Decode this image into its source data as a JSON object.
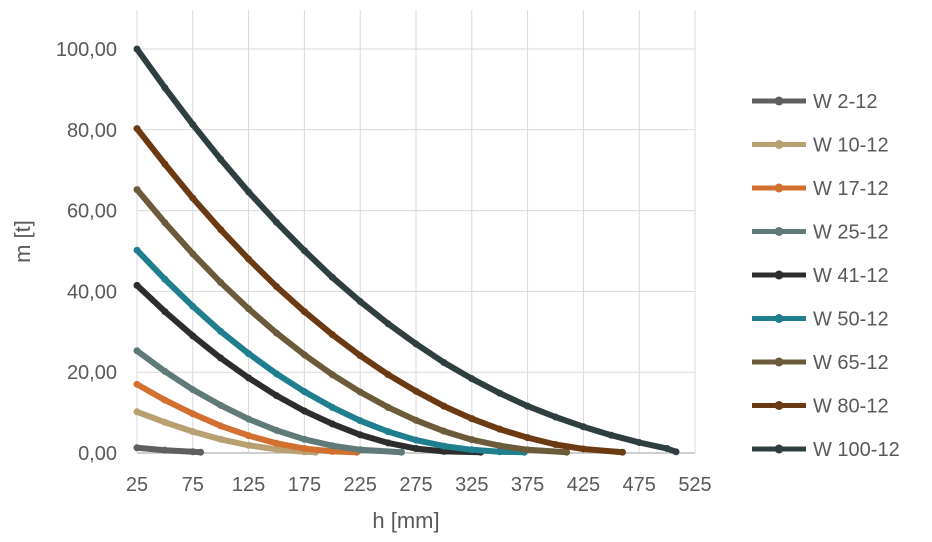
{
  "chart_data": {
    "type": "line",
    "xlabel": "h [mm]",
    "ylabel": "m [t]",
    "x_ticks": [
      "25",
      "75",
      "125",
      "175",
      "225",
      "275",
      "325",
      "375",
      "425",
      "475",
      "525"
    ],
    "y_ticks": [
      "0,00",
      "20,00",
      "40,00",
      "60,00",
      "80,00",
      "100,00"
    ],
    "xlim": [
      25,
      525
    ],
    "ylim": [
      0,
      110
    ],
    "grid": true,
    "legend_position": "right",
    "series": [
      {
        "name": "W 2-12",
        "color": "#5f5f5f",
        "points": [
          [
            25,
            1.3
          ],
          [
            50,
            0.7
          ],
          [
            75,
            0.3
          ],
          [
            82,
            0.2
          ]
        ]
      },
      {
        "name": "W 10-12",
        "color": "#b7a173",
        "points": [
          [
            25,
            10.2
          ],
          [
            50,
            7.6
          ],
          [
            75,
            5.3
          ],
          [
            100,
            3.4
          ],
          [
            125,
            1.9
          ],
          [
            150,
            0.9
          ],
          [
            175,
            0.3
          ],
          [
            185,
            0.2
          ]
        ]
      },
      {
        "name": "W 17-12",
        "color": "#d36f2f",
        "points": [
          [
            25,
            17
          ],
          [
            50,
            13.1
          ],
          [
            75,
            9.7
          ],
          [
            100,
            6.7
          ],
          [
            125,
            4.3
          ],
          [
            150,
            2.4
          ],
          [
            175,
            1.1
          ],
          [
            200,
            0.4
          ],
          [
            222,
            0.2
          ]
        ]
      },
      {
        "name": "W 25-12",
        "color": "#5f7a78",
        "points": [
          [
            25,
            25.3
          ],
          [
            50,
            20.2
          ],
          [
            75,
            15.7
          ],
          [
            100,
            11.8
          ],
          [
            125,
            8.4
          ],
          [
            150,
            5.6
          ],
          [
            175,
            3.4
          ],
          [
            200,
            1.8
          ],
          [
            225,
            0.8
          ],
          [
            262,
            0.2
          ]
        ]
      },
      {
        "name": "W 41-12",
        "color": "#2d2d2d",
        "points": [
          [
            25,
            41.5
          ],
          [
            50,
            35
          ],
          [
            75,
            29
          ],
          [
            100,
            23.5
          ],
          [
            125,
            18.6
          ],
          [
            150,
            14.2
          ],
          [
            175,
            10.4
          ],
          [
            200,
            7.2
          ],
          [
            225,
            4.5
          ],
          [
            250,
            2.5
          ],
          [
            275,
            1.1
          ],
          [
            300,
            0.4
          ],
          [
            333,
            0.2
          ]
        ]
      },
      {
        "name": "W 50-12",
        "color": "#1f7f8f",
        "points": [
          [
            25,
            50.2
          ],
          [
            50,
            43
          ],
          [
            75,
            36.3
          ],
          [
            100,
            30.1
          ],
          [
            125,
            24.6
          ],
          [
            150,
            19.6
          ],
          [
            175,
            15.2
          ],
          [
            200,
            11.3
          ],
          [
            225,
            8
          ],
          [
            250,
            5.3
          ],
          [
            275,
            3.2
          ],
          [
            300,
            1.7
          ],
          [
            325,
            0.8
          ],
          [
            350,
            0.3
          ],
          [
            372,
            0.2
          ]
        ]
      },
      {
        "name": "W 65-12",
        "color": "#6b5b3a",
        "points": [
          [
            25,
            65.2
          ],
          [
            50,
            57
          ],
          [
            75,
            49.3
          ],
          [
            100,
            42.2
          ],
          [
            125,
            35.7
          ],
          [
            150,
            29.7
          ],
          [
            175,
            24.3
          ],
          [
            200,
            19.4
          ],
          [
            225,
            15.1
          ],
          [
            250,
            11.3
          ],
          [
            275,
            8.1
          ],
          [
            300,
            5.4
          ],
          [
            325,
            3.3
          ],
          [
            350,
            1.8
          ],
          [
            375,
            0.8
          ],
          [
            410,
            0.2
          ]
        ]
      },
      {
        "name": "W 80-12",
        "color": "#6b3a12",
        "points": [
          [
            25,
            80.3
          ],
          [
            50,
            71.5
          ],
          [
            75,
            63.1
          ],
          [
            100,
            55.3
          ],
          [
            125,
            48
          ],
          [
            150,
            41.2
          ],
          [
            175,
            35
          ],
          [
            200,
            29.3
          ],
          [
            225,
            24.1
          ],
          [
            250,
            19.4
          ],
          [
            275,
            15.3
          ],
          [
            300,
            11.6
          ],
          [
            325,
            8.5
          ],
          [
            350,
            5.9
          ],
          [
            375,
            3.8
          ],
          [
            400,
            2.1
          ],
          [
            425,
            1
          ],
          [
            460,
            0.2
          ]
        ]
      },
      {
        "name": "W 100-12",
        "color": "#2f3f40",
        "points": [
          [
            25,
            100
          ],
          [
            50,
            90.4
          ],
          [
            75,
            81.3
          ],
          [
            100,
            72.7
          ],
          [
            125,
            64.6
          ],
          [
            150,
            57.1
          ],
          [
            175,
            50.1
          ],
          [
            200,
            43.5
          ],
          [
            225,
            37.5
          ],
          [
            250,
            32
          ],
          [
            275,
            27
          ],
          [
            300,
            22.4
          ],
          [
            325,
            18.4
          ],
          [
            350,
            14.8
          ],
          [
            375,
            11.6
          ],
          [
            400,
            8.9
          ],
          [
            425,
            6.5
          ],
          [
            450,
            4.4
          ],
          [
            475,
            2.6
          ],
          [
            500,
            1.1
          ],
          [
            508,
            0.3
          ]
        ]
      }
    ]
  }
}
